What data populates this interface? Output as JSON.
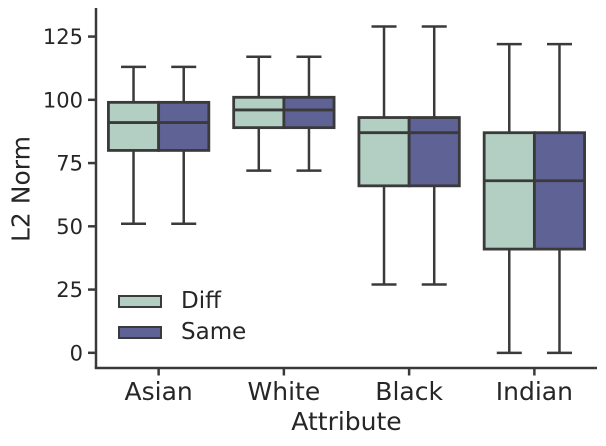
{
  "chart_data": {
    "type": "boxplot",
    "title": "",
    "xlabel": "Attribute",
    "ylabel": "L2 Norm",
    "categories": [
      "Asian",
      "White",
      "Black",
      "Indian"
    ],
    "yticks": [
      0,
      25,
      50,
      75,
      100,
      125
    ],
    "ylim": [
      -6,
      135.5
    ],
    "grid": false,
    "legend_position": "lower-left",
    "colors": {
      "line": "#3a3a3a",
      "text": "#262626",
      "background": "#ffffff"
    },
    "series": [
      {
        "name": "Diff",
        "color": "#b3cfc4",
        "boxes": [
          {
            "category": "Asian",
            "whislo": 51,
            "q1": 80,
            "med": 91,
            "q3": 99,
            "whishi": 113
          },
          {
            "category": "White",
            "whislo": 72,
            "q1": 89,
            "med": 96,
            "q3": 101,
            "whishi": 117
          },
          {
            "category": "Black",
            "whislo": 27,
            "q1": 66,
            "med": 87,
            "q3": 93,
            "whishi": 129
          },
          {
            "category": "Indian",
            "whislo": 0,
            "q1": 41,
            "med": 68,
            "q3": 87,
            "whishi": 122
          }
        ]
      },
      {
        "name": "Same",
        "color": "#5f6295",
        "boxes": [
          {
            "category": "Asian",
            "whislo": 51,
            "q1": 80,
            "med": 91,
            "q3": 99,
            "whishi": 113
          },
          {
            "category": "White",
            "whislo": 72,
            "q1": 89,
            "med": 96,
            "q3": 101,
            "whishi": 117
          },
          {
            "category": "Black",
            "whislo": 27,
            "q1": 66,
            "med": 87,
            "q3": 93,
            "whishi": 129
          },
          {
            "category": "Indian",
            "whislo": 0,
            "q1": 41,
            "med": 68,
            "q3": 87,
            "whishi": 122
          }
        ]
      }
    ]
  }
}
